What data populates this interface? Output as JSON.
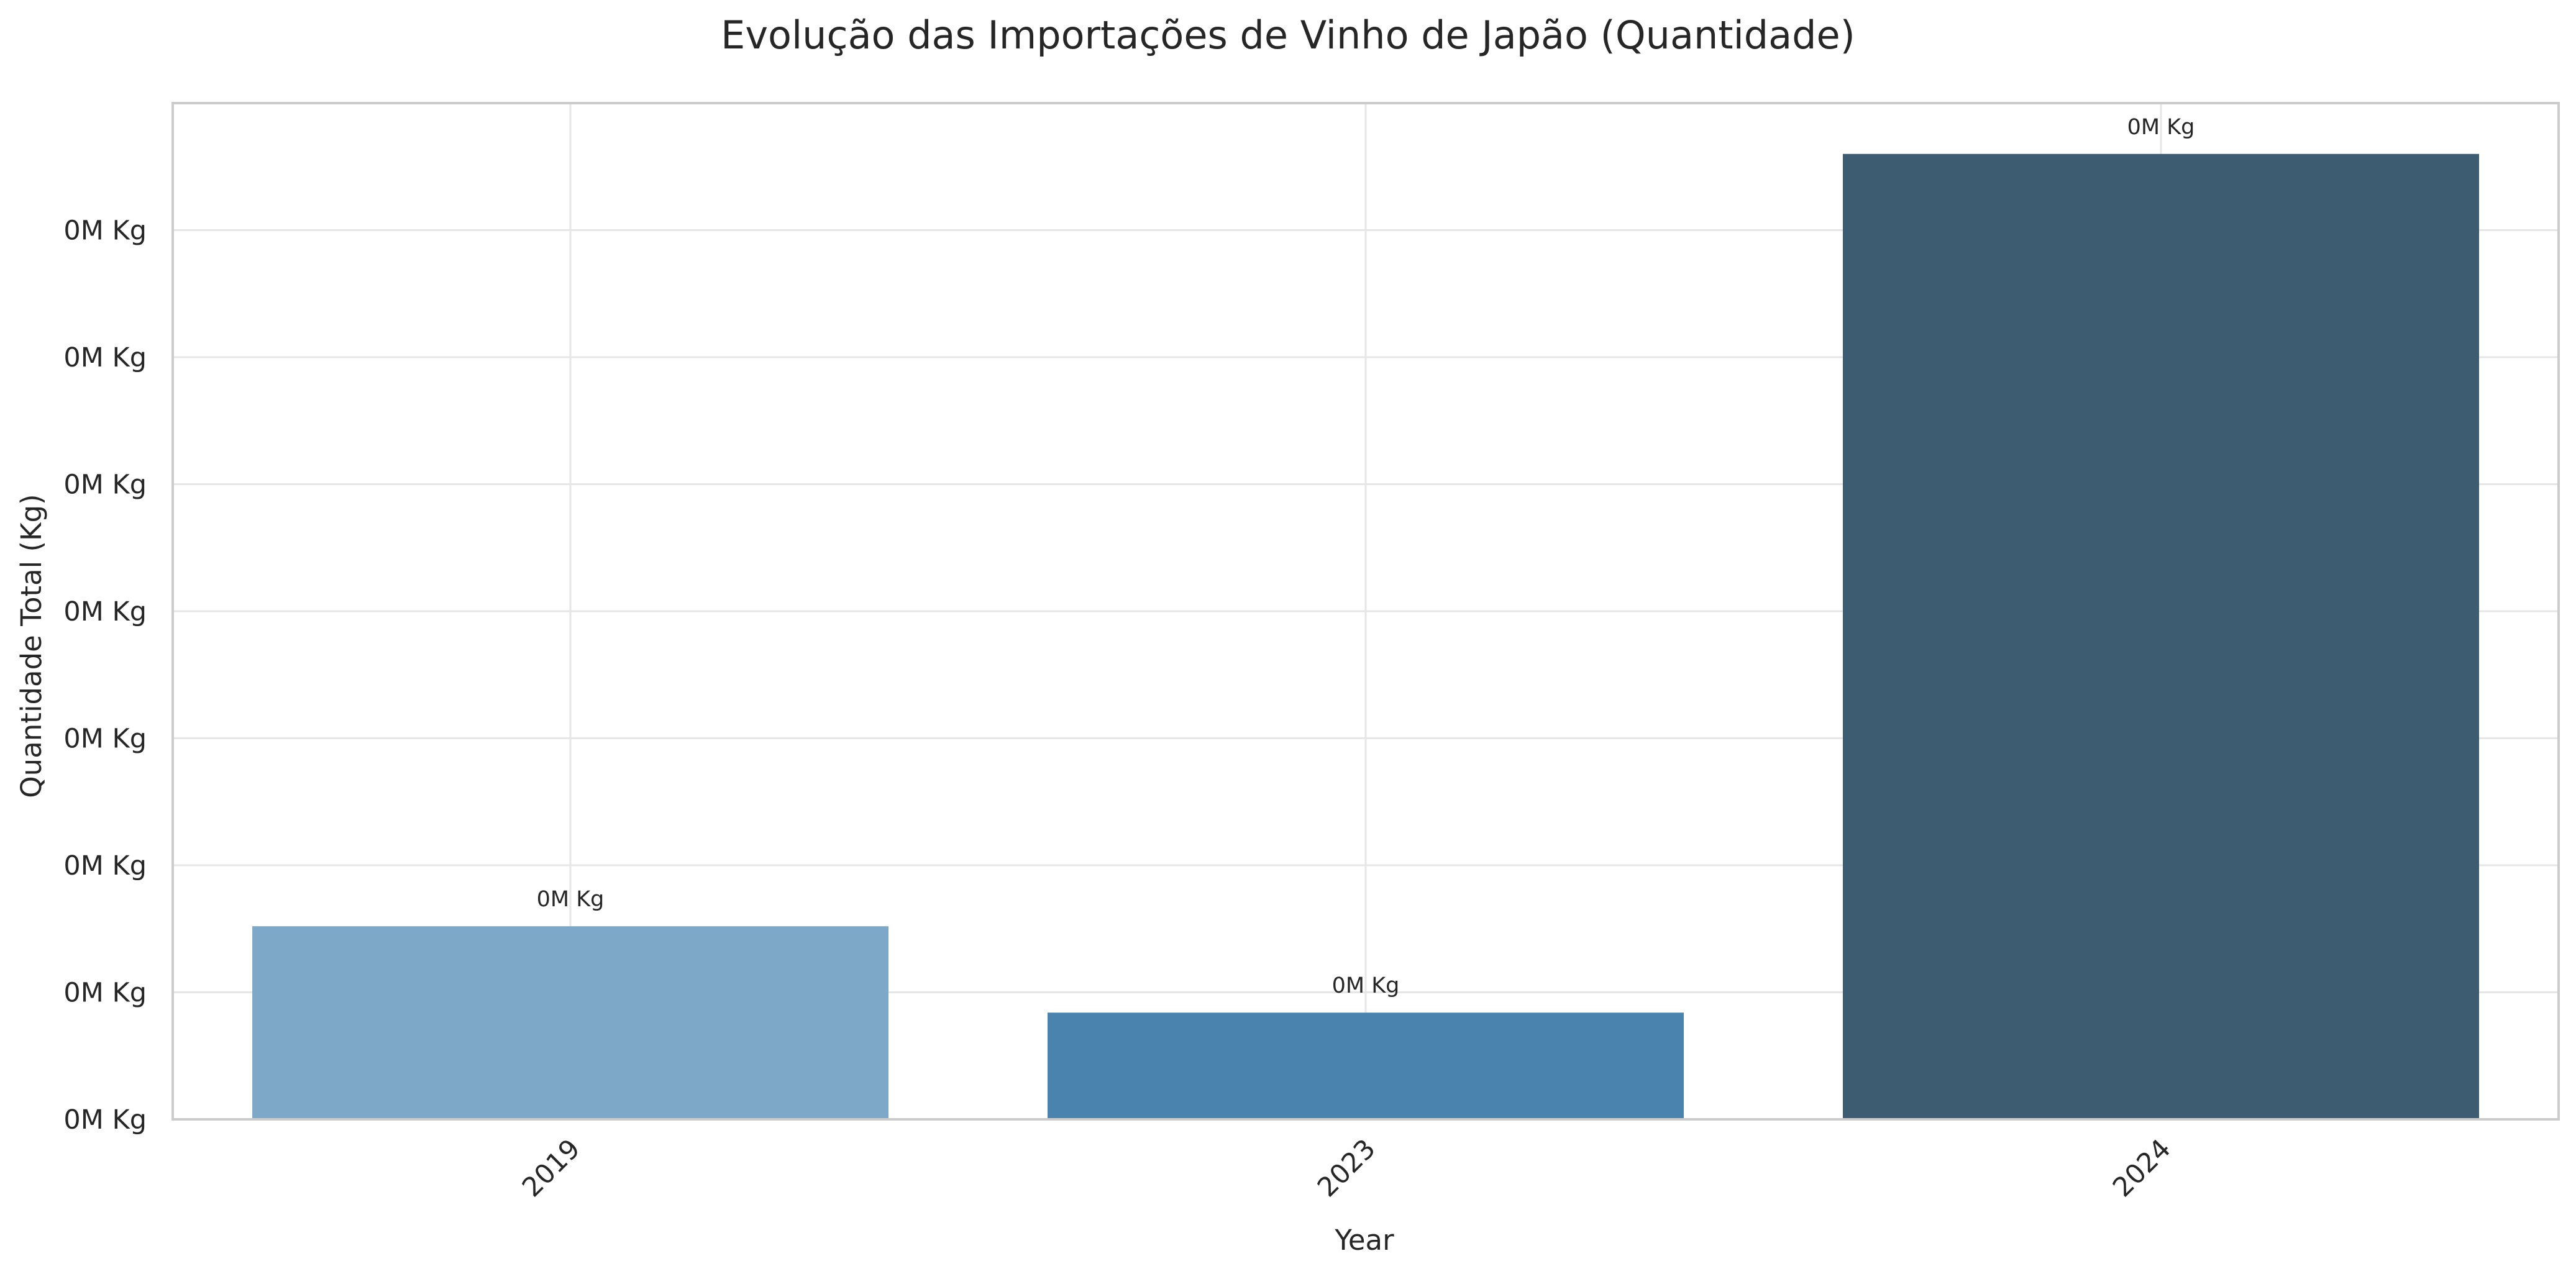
{
  "chart_data": {
    "type": "bar",
    "title": "Evolução das Importações de Vinho de Japão (Quantidade)",
    "xlabel": "Year",
    "ylabel": "Quantidade Total (Kg)",
    "categories": [
      "2019",
      "2023",
      "2024"
    ],
    "values": [
      76,
      42,
      380
    ],
    "value_labels": [
      "0M Kg",
      "0M Kg",
      "0M Kg"
    ],
    "colors": [
      "#7ea8c7",
      "#4a84ae",
      "#3e5c71"
    ],
    "ylim": [
      0,
      400
    ],
    "yticks": [
      0,
      50,
      100,
      150,
      200,
      250,
      300,
      350
    ],
    "ytick_labels": [
      "0M Kg",
      "0M Kg",
      "0M Kg",
      "0M Kg",
      "0M Kg",
      "0M Kg",
      "0M Kg",
      "0M Kg"
    ],
    "grid": true,
    "legend": false,
    "x_tick_rotation": 45
  }
}
